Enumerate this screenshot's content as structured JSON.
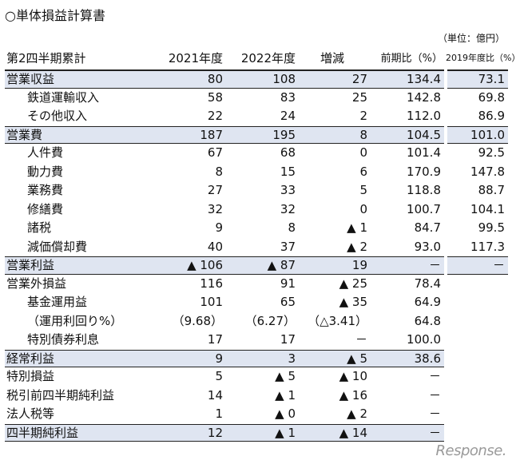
{
  "title": "○単体損益計算書",
  "unit": "（単位：億円）",
  "header": {
    "label": "第2四半期累計",
    "c2021": "2021年度",
    "c2022": "2022年度",
    "cchg": "増減",
    "cyoy": "前期比（%）",
    "cprev": "2019年度比（%）"
  },
  "rows": [
    {
      "label": "営業収益",
      "c2021": "80",
      "c2022": "108",
      "cchg": "27",
      "cyoy": "134.4"
    },
    {
      "label": "鉄道運輸収入",
      "c2021": "58",
      "c2022": "83",
      "cchg": "25",
      "cyoy": "142.8"
    },
    {
      "label": "その他収入",
      "c2021": "22",
      "c2022": "24",
      "cchg": "2",
      "cyoy": "112.0"
    },
    {
      "label": "営業費",
      "c2021": "187",
      "c2022": "195",
      "cchg": "8",
      "cyoy": "104.5"
    },
    {
      "label": "人件費",
      "c2021": "67",
      "c2022": "68",
      "cchg": "0",
      "cyoy": "101.4"
    },
    {
      "label": "動力費",
      "c2021": "8",
      "c2022": "15",
      "cchg": "6",
      "cyoy": "170.9"
    },
    {
      "label": "業務費",
      "c2021": "27",
      "c2022": "33",
      "cchg": "5",
      "cyoy": "118.8"
    },
    {
      "label": "修繕費",
      "c2021": "32",
      "c2022": "32",
      "cchg": "0",
      "cyoy": "100.7"
    },
    {
      "label": "諸税",
      "c2021": "9",
      "c2022": "8",
      "cchg": "▲ 1",
      "cyoy": "84.7"
    },
    {
      "label": "減価償却費",
      "c2021": "40",
      "c2022": "37",
      "cchg": "▲ 2",
      "cyoy": "93.0"
    },
    {
      "label": "営業利益",
      "c2021": "▲ 106",
      "c2022": "▲ 87",
      "cchg": "19",
      "cyoy": "－"
    },
    {
      "label": "営業外損益",
      "c2021": "116",
      "c2022": "91",
      "cchg": "▲ 25",
      "cyoy": "78.4"
    },
    {
      "label": "基金運用益",
      "c2021": "101",
      "c2022": "65",
      "cchg": "▲ 35",
      "cyoy": "64.9"
    },
    {
      "label": "（運用利回り%）",
      "c2021": "（9.68）",
      "c2022": "（6.27）",
      "cchg": "（△3.41）",
      "cyoy": "64.8"
    },
    {
      "label": "特別債券利息",
      "c2021": "17",
      "c2022": "17",
      "cchg": "－",
      "cyoy": "100.0"
    },
    {
      "label": "経常利益",
      "c2021": "9",
      "c2022": "3",
      "cchg": "▲ 5",
      "cyoy": "38.6"
    },
    {
      "label": "特別損益",
      "c2021": "5",
      "c2022": "▲ 5",
      "cchg": "▲ 10",
      "cyoy": "－"
    },
    {
      "label": "税引前四半期純利益",
      "c2021": "14",
      "c2022": "▲ 1",
      "cchg": "▲ 16",
      "cyoy": "－"
    },
    {
      "label": "法人税等",
      "c2021": "1",
      "c2022": "▲ 0",
      "cchg": "▲ 2",
      "cyoy": "－"
    },
    {
      "label": "四半期純利益",
      "c2021": "12",
      "c2022": "▲ 1",
      "cchg": "▲ 14",
      "cyoy": "－"
    }
  ],
  "prev": [
    "73.1",
    "69.8",
    "86.9",
    "101.0",
    "92.5",
    "147.8",
    "88.7",
    "104.1",
    "99.5",
    "117.3",
    "－"
  ],
  "watermark": "Response."
}
